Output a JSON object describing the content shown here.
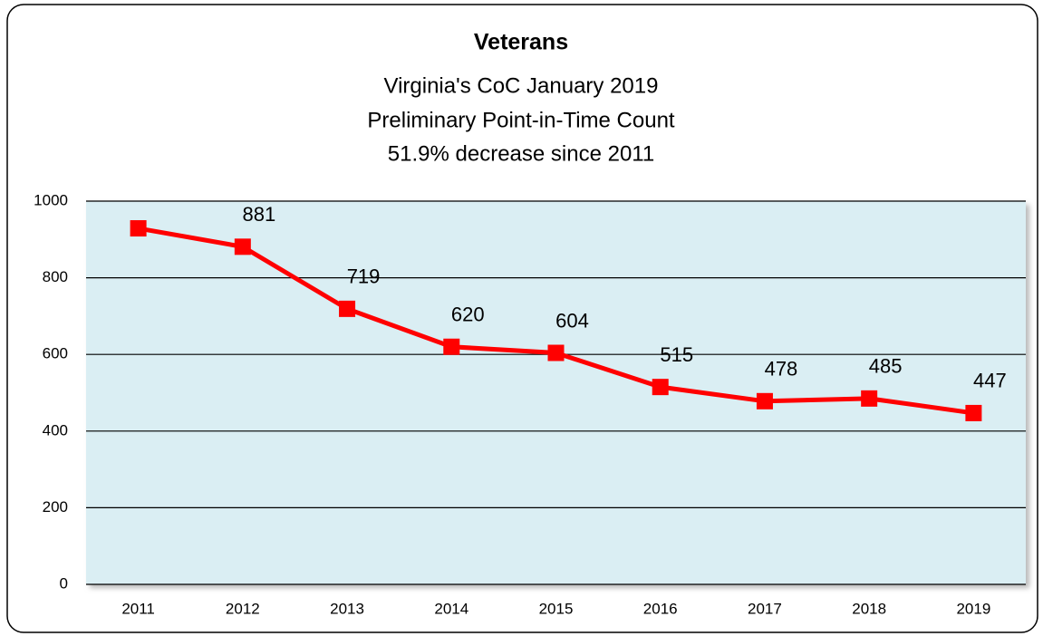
{
  "chart_data": {
    "type": "line",
    "title": "Veterans",
    "subtitle": [
      "Virginia's CoC January 2019",
      "Preliminary Point-in-Time Count",
      "51.9% decrease since 2011"
    ],
    "categories": [
      "2011",
      "2012",
      "2013",
      "2014",
      "2015",
      "2016",
      "2017",
      "2018",
      "2019"
    ],
    "series": [
      {
        "name": "Veterans",
        "color": "#ff0000",
        "values": [
          929,
          881,
          719,
          620,
          604,
          515,
          478,
          485,
          447
        ],
        "value_labels": [
          null,
          "881",
          "719",
          "620",
          "604",
          "515",
          "478",
          "485",
          "447"
        ]
      }
    ],
    "ylim": [
      0,
      1000
    ],
    "yticks": [
      0,
      200,
      400,
      600,
      800,
      1000
    ],
    "grid": true,
    "plot_background": "#daeef3"
  }
}
